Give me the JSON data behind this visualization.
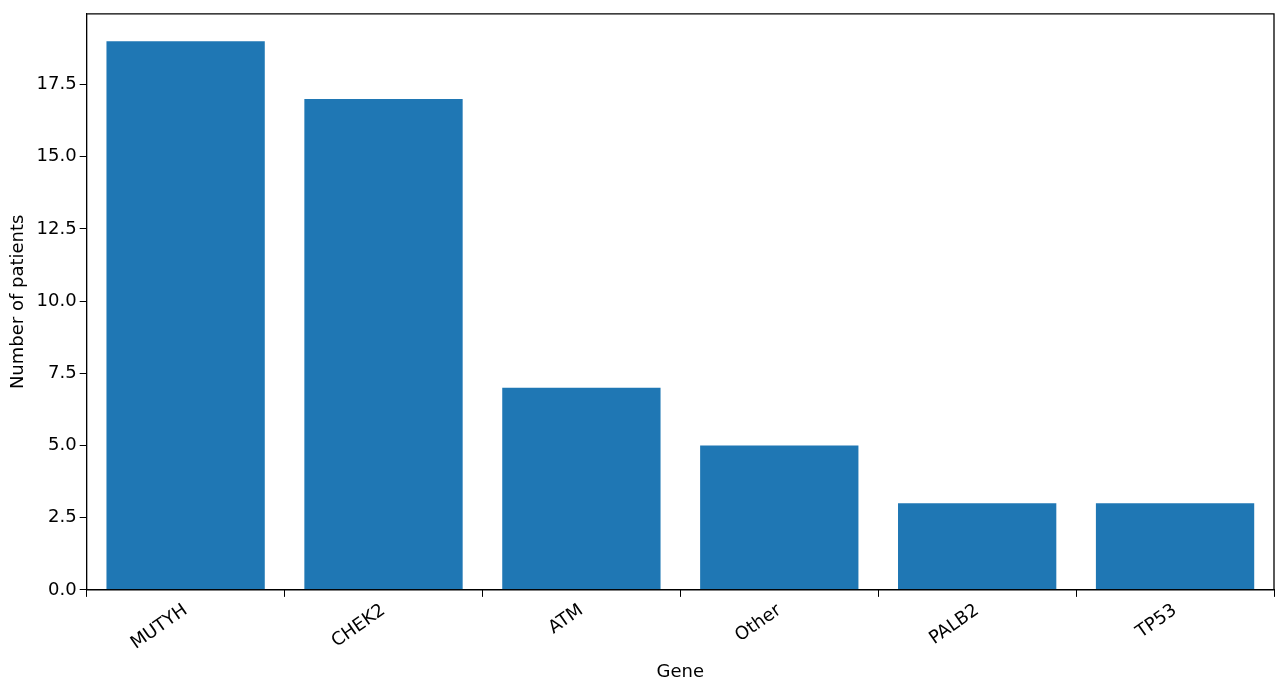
{
  "chart_data": {
    "type": "bar",
    "xlabel": "Gene",
    "ylabel": "Number of patients",
    "categories": [
      "MUTYH",
      "CHEK2",
      "ATM",
      "Other",
      "PALB2",
      "TP53"
    ],
    "values": [
      19,
      17,
      7,
      5,
      3,
      3
    ],
    "color": "#1f77b4",
    "ylim": [
      0,
      19.95
    ],
    "yticks": [
      {
        "value": 0,
        "label": "0.0"
      },
      {
        "value": 2.5,
        "label": "2.5"
      },
      {
        "value": 5,
        "label": "5.0"
      },
      {
        "value": 7.5,
        "label": "7.5"
      },
      {
        "value": 10,
        "label": "10.0"
      },
      {
        "value": 12.5,
        "label": "12.5"
      },
      {
        "value": 15,
        "label": "15.0"
      },
      {
        "value": 17.5,
        "label": "17.5"
      }
    ],
    "grid": false,
    "legend": false
  }
}
